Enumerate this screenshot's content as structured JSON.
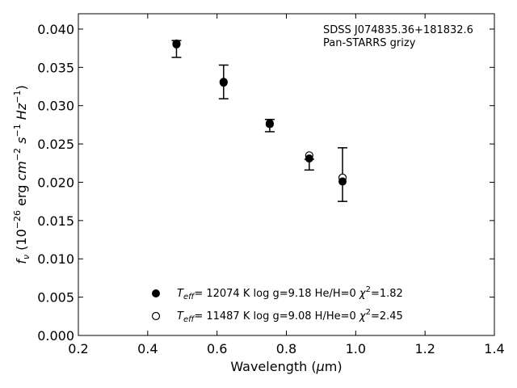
{
  "chart_data": {
    "type": "scatter",
    "xlabel": "Wavelength (μm)",
    "ylabel": "f_ν (10^-26 erg cm^-2 s^-1 Hz^-1)",
    "xlim": [
      0.2,
      1.4
    ],
    "ylim": [
      0.0,
      0.042
    ],
    "x_ticks": [
      "0.2",
      "0.4",
      "0.6",
      "0.8",
      "1.0",
      "1.2",
      "1.4"
    ],
    "y_ticks": [
      "0.000",
      "0.005",
      "0.010",
      "0.015",
      "0.020",
      "0.025",
      "0.030",
      "0.035",
      "0.040"
    ],
    "annotation": [
      "SDSS J074835.36+181832.6",
      "Pan-STARRS grizy"
    ],
    "grid": false,
    "legend_placement": "lower-center",
    "observed": {
      "x": [
        0.483,
        0.619,
        0.752,
        0.866,
        0.962
      ],
      "y": [
        0.0374,
        0.0331,
        0.0274,
        0.0223,
        0.021
      ],
      "yerr": [
        0.0011,
        0.0022,
        0.0008,
        0.0007,
        0.0035
      ]
    },
    "series": [
      {
        "name": "T_eff= 12074 K  log g=9.18  He/H=0  χ²=1.82",
        "marker": "filled-circle",
        "x": [
          0.483,
          0.619,
          0.752,
          0.866,
          0.962
        ],
        "y": [
          0.038,
          0.033,
          0.0277,
          0.0231,
          0.0201
        ]
      },
      {
        "name": "T_eff= 11487 K  log g=9.08  H/He=0  χ²=2.45",
        "marker": "open-circle",
        "x": [
          0.483,
          0.619,
          0.752,
          0.866,
          0.962
        ],
        "y": [
          0.0381,
          0.0331,
          0.0276,
          0.0235,
          0.0206
        ]
      }
    ]
  }
}
